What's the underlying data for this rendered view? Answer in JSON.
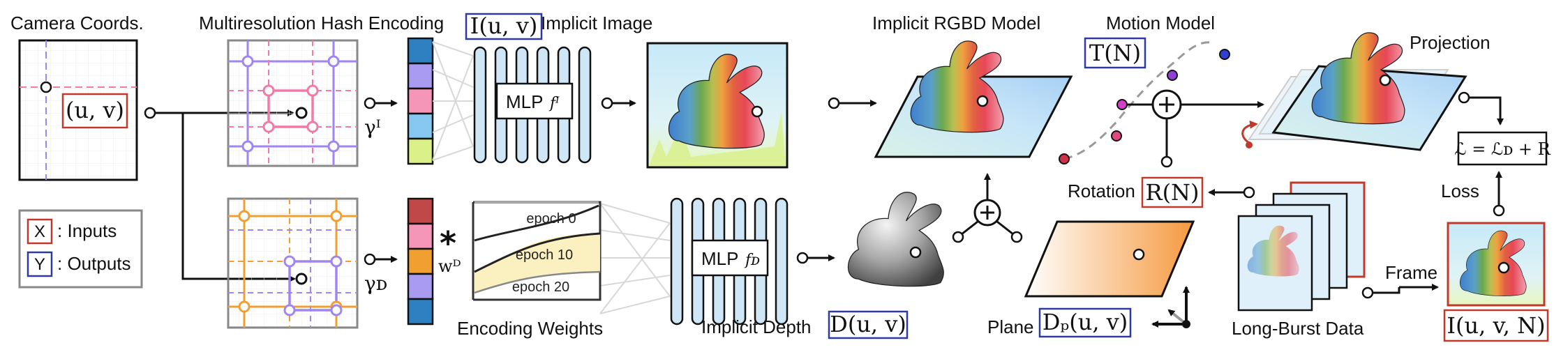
{
  "labels": {
    "camera_coords": "Camera Coords.",
    "hash_encoding": "Multiresolution Hash Encoding",
    "implicit_image": "Implicit Image",
    "implicit_rgbd": "Implicit RGBD Model",
    "motion_model": "Motion Model",
    "projection": "Projection",
    "encoding_weights": "Encoding Weights",
    "implicit_depth": "Implicit Depth",
    "plane": "Plane",
    "long_burst": "Long-Burst Data",
    "rotation": "Rotation",
    "loss": "Loss",
    "frame": "Frame"
  },
  "legend": {
    "inputs_symbol": "X",
    "inputs_text": ": Inputs",
    "outputs_symbol": "Y",
    "outputs_text": ": Outputs"
  },
  "math": {
    "uv": "(u, v)",
    "image_fn": "I(u, v)",
    "depth_fn": "D(u, v)",
    "plane_fn": "Dₚ(u, v)",
    "translation": "T(N)",
    "rotation_fn": "R(N)",
    "frame_fn": "I(u, v, N)",
    "loss_eq": "ℒ = ℒᴅ + R",
    "gamma_i": "γᴵ",
    "gamma_d": "γᴅ",
    "weight": "wᴰ",
    "star": "*"
  },
  "mlp": {
    "image_label": "MLP",
    "image_sub": "fᴵ",
    "depth_label": "MLP",
    "depth_sub": "fᴅ"
  },
  "epochs": [
    "epoch 0",
    "epoch 10",
    "epoch 20"
  ],
  "colors": {
    "input_box": "#c0392b",
    "output_box": "#2e3aa0",
    "hash_top_lines": "#9f86f0",
    "hash_top_inner": "#f07aa8",
    "hash_bottom_outer": "#f0a030",
    "hash_bottom_inner": "#9f86f0",
    "mlp_fill": "#cfe6f7",
    "plane_orange": "#f5a04a"
  },
  "encoding_colors_top": [
    "#2f80c0",
    "#a99cf0",
    "#f596b8",
    "#86c8f0",
    "#dcf08a"
  ],
  "encoding_colors_bottom": [
    "#c04848",
    "#f596b8",
    "#f0a030",
    "#a99cf0",
    "#2f80c0"
  ],
  "icons": [
    "bunny-color-icon",
    "bunny-depth-icon",
    "plus-icon",
    "axes-icon"
  ]
}
